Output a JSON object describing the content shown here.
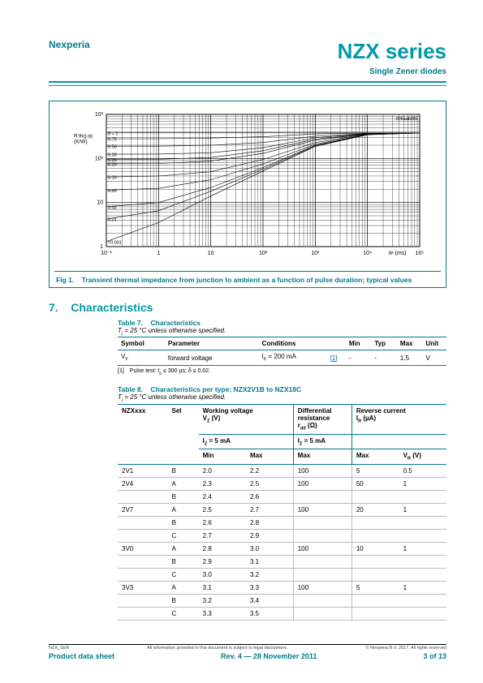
{
  "header": {
    "brand": "Nexperia",
    "title": "NZX series",
    "subtitle": "Single Zener diodes"
  },
  "figure1": {
    "label": "Fig 1.",
    "caption": "Transient thermal impedance from junction to ambient as a function of pulse duration; typical values",
    "code": "006aab001",
    "y_axis_label": "R_th(j-a) (K/W)",
    "x_axis_label": "t_p (ms)",
    "x_scale": "log",
    "y_scale": "log",
    "plot_style": {
      "line_color": "#000000",
      "grid_color": "#000000",
      "background_color": "#ffffff",
      "line_width": 0.6,
      "grid_line_width": 0.35
    },
    "ylim": [
      1,
      1000
    ],
    "y_major_ticks": [
      1,
      10,
      100,
      1000
    ],
    "xlim": [
      0.1,
      100000
    ],
    "x_major_ticks": [
      0.1,
      1,
      10,
      100,
      1000,
      10000,
      100000
    ],
    "x_tick_labels": [
      "10⁻¹",
      "1",
      "10",
      "10²",
      "10³",
      "10⁴",
      "10⁵"
    ],
    "y_tick_labels": [
      "1",
      "10",
      "10²",
      "10³"
    ],
    "delta_labels": [
      "δ = 1",
      "0.75",
      "0.50",
      "0.33",
      "0.25",
      "0.20",
      "0.10",
      "0.05",
      "0.02",
      "0.01",
      "=0.001"
    ],
    "series": {
      "delta_1": {
        "x": [
          0.1,
          100000
        ],
        "y": [
          380,
          380
        ]
      },
      "delta_0.75": {
        "x": [
          0.1,
          1,
          10,
          100,
          1000,
          10000,
          100000
        ],
        "y": [
          280,
          280,
          290,
          310,
          360,
          375,
          378
        ]
      },
      "delta_0.5": {
        "x": [
          0.1,
          1,
          10,
          100,
          1000,
          10000,
          100000
        ],
        "y": [
          190,
          190,
          200,
          230,
          320,
          370,
          378
        ]
      },
      "delta_0.33": {
        "x": [
          0.1,
          1,
          10,
          100,
          1000,
          10000,
          100000
        ],
        "y": [
          125,
          126,
          135,
          175,
          295,
          365,
          378
        ]
      },
      "delta_0.25": {
        "x": [
          0.1,
          1,
          10,
          100,
          1000,
          10000,
          100000
        ],
        "y": [
          95,
          96,
          105,
          150,
          275,
          360,
          378
        ]
      },
      "delta_0.2": {
        "x": [
          0.1,
          1,
          10,
          100,
          1000,
          10000,
          100000
        ],
        "y": [
          76,
          77,
          87,
          130,
          260,
          358,
          378
        ]
      },
      "delta_0.1": {
        "x": [
          0.1,
          1,
          10,
          100,
          1000,
          10000,
          100000
        ],
        "y": [
          38,
          40,
          50,
          95,
          230,
          355,
          378
        ]
      },
      "delta_0.05": {
        "x": [
          0.1,
          1,
          10,
          100,
          1000,
          10000,
          100000
        ],
        "y": [
          19,
          21,
          33,
          75,
          210,
          350,
          378
        ]
      },
      "delta_0.02": {
        "x": [
          0.1,
          1,
          10,
          100,
          1000,
          10000,
          100000
        ],
        "y": [
          8,
          10,
          22,
          62,
          198,
          348,
          378
        ]
      },
      "delta_0.01": {
        "x": [
          0.1,
          1,
          10,
          100,
          1000,
          10000,
          100000
        ],
        "y": [
          4.2,
          6.5,
          18,
          57,
          192,
          346,
          378
        ]
      },
      "delta_0.001": {
        "x": [
          0.1,
          1,
          10,
          100,
          1000,
          10000,
          100000
        ],
        "y": [
          1.3,
          3.5,
          14,
          52,
          188,
          345,
          378
        ]
      }
    }
  },
  "section7": {
    "number": "7.",
    "title": "Characteristics"
  },
  "table7": {
    "label": "Table 7.",
    "title": "Characteristics",
    "note_top": "T_j = 25 °C unless otherwise specified.",
    "columns": [
      "Symbol",
      "Parameter",
      "Conditions",
      "",
      "Min",
      "Typ",
      "Max",
      "Unit"
    ],
    "rows": [
      [
        "V_F",
        "forward voltage",
        "I_F = 200 mA",
        "[1]",
        "-",
        "-",
        "1.5",
        "V"
      ]
    ],
    "footnote": "[1] Pulse test: t_p ≤ 300 µs; δ ≤ 0.02."
  },
  "table8": {
    "label": "Table 8.",
    "title": "Characteristics per type; NZX2V1B to NZX18C",
    "note_top": "T_j = 25 °C unless otherwise specified.",
    "header_row1": [
      "NZXxxx",
      "Sel",
      "Working voltage V_Z (V)",
      "Differential resistance r_dif (Ω)",
      "Reverse current I_R (µA)"
    ],
    "header_row2": [
      "",
      "",
      "I_Z = 5 mA",
      "I_Z = 5 mA",
      ""
    ],
    "header_row2_split": {
      "working": [
        "Min",
        "Max"
      ],
      "rdif": [
        "Max"
      ],
      "ir": [
        "Max",
        "V_R (V)"
      ]
    },
    "groups": [
      {
        "type": "2V1",
        "rows": [
          [
            "B",
            "2.0",
            "2.2",
            "100",
            "5",
            "0.5"
          ]
        ]
      },
      {
        "type": "2V4",
        "rows": [
          [
            "A",
            "2.3",
            "2.5",
            "100",
            "50",
            "1"
          ],
          [
            "B",
            "2.4",
            "2.6",
            "",
            "",
            ""
          ]
        ]
      },
      {
        "type": "2V7",
        "rows": [
          [
            "A",
            "2.5",
            "2.7",
            "100",
            "20",
            "1"
          ],
          [
            "B",
            "2.6",
            "2.8",
            "",
            "",
            ""
          ],
          [
            "C",
            "2.7",
            "2.9",
            "",
            "",
            ""
          ]
        ]
      },
      {
        "type": "3V0",
        "rows": [
          [
            "A",
            "2.8",
            "3.0",
            "100",
            "10",
            "1"
          ],
          [
            "B",
            "2.9",
            "3.1",
            "",
            "",
            ""
          ],
          [
            "C",
            "3.0",
            "3.2",
            "",
            "",
            ""
          ]
        ]
      },
      {
        "type": "3V3",
        "rows": [
          [
            "A",
            "3.1",
            "3.3",
            "100",
            "5",
            "1"
          ],
          [
            "B",
            "3.2",
            "3.4",
            "",
            "",
            ""
          ],
          [
            "C",
            "3.3",
            "3.5",
            "",
            "",
            ""
          ]
        ]
      }
    ]
  },
  "footer": {
    "doc_id": "NZX_SER",
    "disclaimer": "All information provided in this document is subject to legal disclaimers.",
    "copyright": "© Nexperia B.V. 2017. All rights reserved",
    "left": "Product data sheet",
    "center": "Rev. 4 — 28 November 2011",
    "right": "3 of 13"
  }
}
